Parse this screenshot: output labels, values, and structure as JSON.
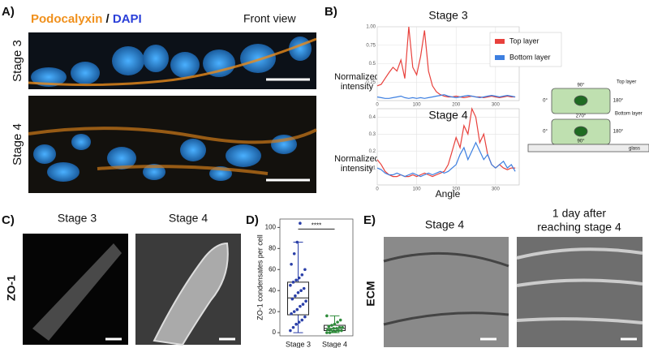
{
  "figure": {
    "panel_labels": [
      "A)",
      "B)",
      "C)",
      "D)",
      "E)"
    ],
    "a": {
      "stain_1": "Podocalyxin",
      "separator": " / ",
      "stain_2": "DAPI",
      "view": "Front view",
      "rows": [
        "Stage 3",
        "Stage 4"
      ]
    },
    "b": {
      "ylabel_1": "Normalized",
      "ylabel_2": "intensity",
      "xlabel": "Angle",
      "diagram": {
        "top_90": "90°",
        "top_0": "0°",
        "top_180": "180°",
        "top_label": "Top layer",
        "mid_270": "270°",
        "bottom_label": "Bottom layer",
        "bot_0": "0°",
        "bot_180": "180°",
        "bot_90": "90°",
        "glass": "glass"
      }
    },
    "c": {
      "titles": [
        "Stage 3",
        "Stage 4"
      ],
      "row": "ZO-1"
    },
    "e": {
      "title_1": "Stage 4",
      "title_2a": "1 day after",
      "title_2b": "reaching stage 4",
      "row": "ECM"
    }
  },
  "chart_data": [
    {
      "type": "line",
      "title": "Stage 3",
      "x": [
        0,
        10,
        20,
        30,
        40,
        50,
        60,
        70,
        80,
        90,
        100,
        110,
        120,
        130,
        140,
        150,
        160,
        170,
        180,
        190,
        200,
        210,
        220,
        230,
        240,
        250,
        260,
        270,
        280,
        290,
        300,
        310,
        320,
        330,
        340,
        350
      ],
      "series": [
        {
          "name": "Top layer",
          "color": "#e8413c",
          "values": [
            0.2,
            0.22,
            0.3,
            0.38,
            0.45,
            0.4,
            0.55,
            0.3,
            1.0,
            0.45,
            0.35,
            0.6,
            0.95,
            0.4,
            0.2,
            0.12,
            0.08,
            0.06,
            0.05,
            0.05,
            0.06,
            0.05,
            0.04,
            0.05,
            0.06,
            0.05,
            0.05,
            0.04,
            0.05,
            0.06,
            0.05,
            0.04,
            0.05,
            0.06,
            0.05,
            0.05
          ]
        },
        {
          "name": "Bottom layer",
          "color": "#3d7fe0",
          "values": [
            0.05,
            0.04,
            0.03,
            0.03,
            0.04,
            0.05,
            0.06,
            0.04,
            0.03,
            0.04,
            0.03,
            0.04,
            0.03,
            0.04,
            0.05,
            0.06,
            0.07,
            0.08,
            0.06,
            0.05,
            0.04,
            0.05,
            0.06,
            0.07,
            0.06,
            0.05,
            0.04,
            0.05,
            0.06,
            0.07,
            0.06,
            0.05,
            0.06,
            0.07,
            0.06,
            0.05
          ]
        }
      ],
      "xlim": [
        0,
        360
      ],
      "xticks": [
        0,
        100,
        200,
        300
      ],
      "ylim": [
        0,
        1
      ],
      "yticks": [
        0.25,
        0.5,
        0.75,
        {
          "value": 1,
          "label": "1.00"
        }
      ],
      "grid": true,
      "legend": "top-right"
    },
    {
      "type": "line",
      "title": "Stage 4",
      "x": [
        0,
        10,
        20,
        30,
        40,
        50,
        60,
        70,
        80,
        90,
        100,
        110,
        120,
        130,
        140,
        150,
        160,
        170,
        180,
        190,
        200,
        210,
        220,
        230,
        240,
        250,
        260,
        270,
        280,
        290,
        300,
        310,
        320,
        330,
        340,
        350
      ],
      "series": [
        {
          "name": "Top layer",
          "color": "#e8413c",
          "values": [
            0.15,
            0.12,
            0.08,
            0.06,
            0.05,
            0.05,
            0.06,
            0.05,
            0.05,
            0.06,
            0.05,
            0.06,
            0.07,
            0.06,
            0.05,
            0.06,
            0.07,
            0.08,
            0.12,
            0.2,
            0.28,
            0.22,
            0.35,
            0.3,
            0.45,
            0.4,
            0.25,
            0.3,
            0.18,
            0.12,
            0.1,
            0.12,
            0.1,
            0.09,
            0.1,
            0.1
          ]
        },
        {
          "name": "Bottom layer",
          "color": "#3d7fe0",
          "values": [
            0.1,
            0.09,
            0.07,
            0.06,
            0.06,
            0.07,
            0.06,
            0.05,
            0.06,
            0.07,
            0.06,
            0.05,
            0.06,
            0.07,
            0.06,
            0.07,
            0.08,
            0.07,
            0.08,
            0.1,
            0.12,
            0.18,
            0.22,
            0.15,
            0.2,
            0.25,
            0.2,
            0.15,
            0.18,
            0.12,
            0.1,
            0.12,
            0.14,
            0.1,
            0.12,
            0.08
          ]
        }
      ],
      "xlim": [
        0,
        360
      ],
      "xticks": [
        0,
        100,
        200,
        300
      ],
      "ylim": [
        0,
        0.45
      ],
      "yticks": [
        0.1,
        0.2,
        0.3,
        0.4
      ],
      "grid": true
    },
    {
      "type": "box",
      "ylabel": "ZO-1 condensates per cell",
      "categories": [
        "Stage 3",
        "Stage 4"
      ],
      "boxes": [
        {
          "color": "#2a3fa8",
          "whisker_low": 0,
          "q1": 17,
          "median": 33,
          "q3": 48,
          "whisker_high": 86,
          "points": [
            2,
            5,
            8,
            10,
            12,
            15,
            18,
            20,
            22,
            25,
            27,
            30,
            32,
            35,
            38,
            40,
            42,
            45,
            48,
            50,
            52,
            55,
            60,
            65,
            75,
            86,
            104
          ]
        },
        {
          "color": "#2e8b3a",
          "whisker_low": 0,
          "q1": 2,
          "median": 4,
          "q3": 7,
          "whisker_high": 16,
          "points": [
            0,
            0,
            1,
            1,
            2,
            2,
            3,
            3,
            4,
            4,
            5,
            5,
            6,
            7,
            8,
            10,
            12,
            16
          ]
        }
      ],
      "ylim": [
        -3,
        108
      ],
      "yticks": [
        0,
        20,
        40,
        60,
        80,
        100
      ],
      "annotation": "****"
    }
  ]
}
